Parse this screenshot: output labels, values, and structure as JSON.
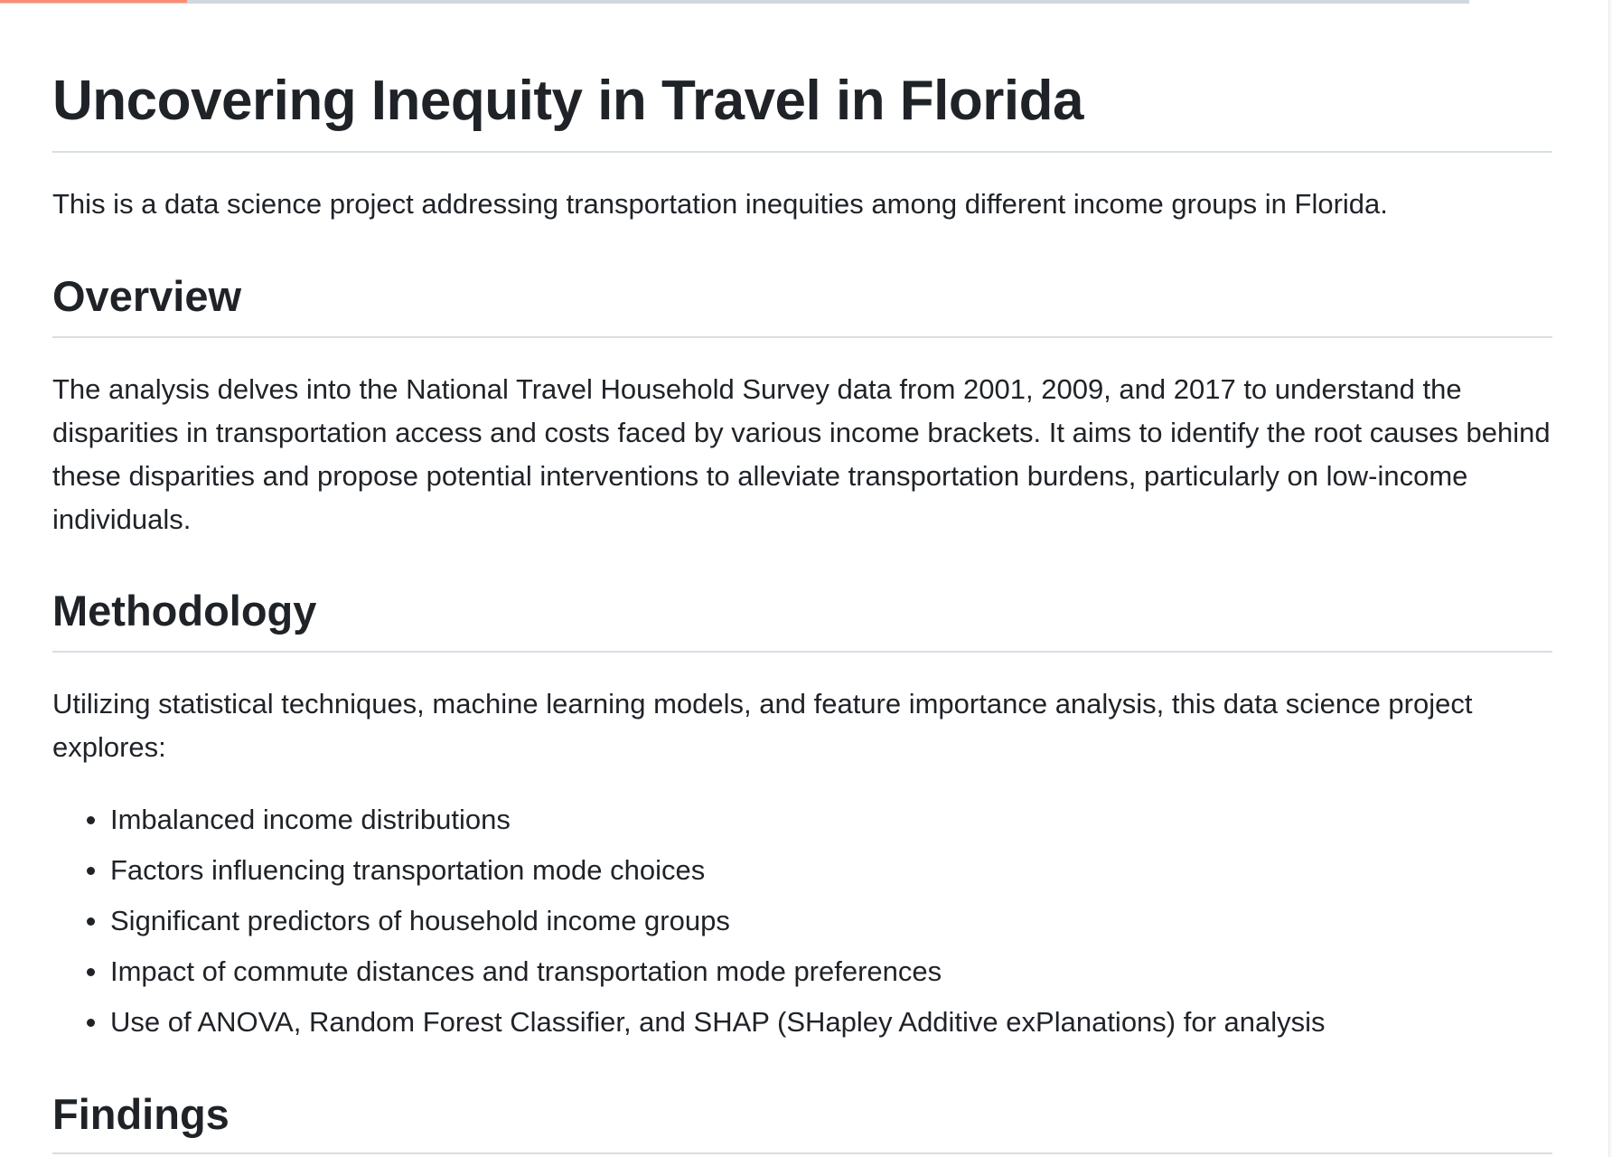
{
  "title": "Uncovering Inequity in Travel in Florida",
  "intro": "This is a data science project addressing transportation inequities among different income groups in Florida.",
  "overview": {
    "heading": "Overview",
    "body": "The analysis delves into the National Travel Household Survey data from 2001, 2009, and 2017 to understand the disparities in transportation access and costs faced by various income brackets. It aims to identify the root causes behind these disparities and propose potential interventions to alleviate transportation burdens, particularly on low-income individuals."
  },
  "methodology": {
    "heading": "Methodology",
    "body": "Utilizing statistical techniques, machine learning models, and feature importance analysis, this data science project explores:",
    "items": [
      "Imbalanced income distributions",
      "Factors influencing transportation mode choices",
      "Significant predictors of household income groups",
      "Impact of commute distances and transportation mode preferences",
      "Use of ANOVA, Random Forest Classifier, and SHAP (SHapley Additive exPlanations) for analysis"
    ]
  },
  "findings": {
    "heading": "Findings"
  },
  "colors": {
    "text": "#1f2328",
    "rule": "#d8dee4",
    "accent": "#fd8c73"
  }
}
